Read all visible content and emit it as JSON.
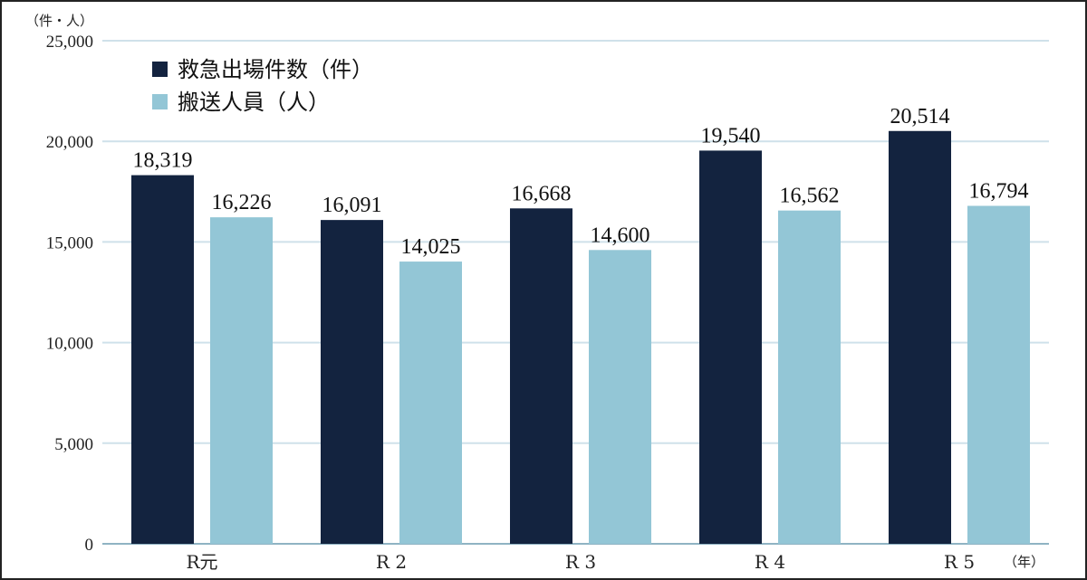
{
  "chart_data": {
    "type": "bar",
    "categories": [
      "R元",
      "R 2",
      "R 3",
      "R 4",
      "R 5"
    ],
    "series": [
      {
        "name": "救急出場件数（件）",
        "color": "#13233f",
        "values": [
          18319,
          16091,
          16668,
          19540,
          20514
        ],
        "labels": [
          "18,319",
          "16,091",
          "16,668",
          "19,540",
          "20,514"
        ]
      },
      {
        "name": "搬送人員（人）",
        "color": "#93c6d6",
        "values": [
          16226,
          14025,
          14600,
          16562,
          16794
        ],
        "labels": [
          "16,226",
          "14,025",
          "14,600",
          "16,562",
          "16,794"
        ]
      }
    ],
    "ylabel": "（件・人）",
    "xlabel": "（年）",
    "ylim": [
      0,
      25000
    ],
    "yticks": [
      0,
      5000,
      10000,
      15000,
      20000,
      25000
    ],
    "ytick_labels": [
      "0",
      "5,000",
      "10,000",
      "15,000",
      "20,000",
      "25,000"
    ],
    "grid": true,
    "gridline_color": "#cfe1ea",
    "legend_position": "top-left"
  }
}
